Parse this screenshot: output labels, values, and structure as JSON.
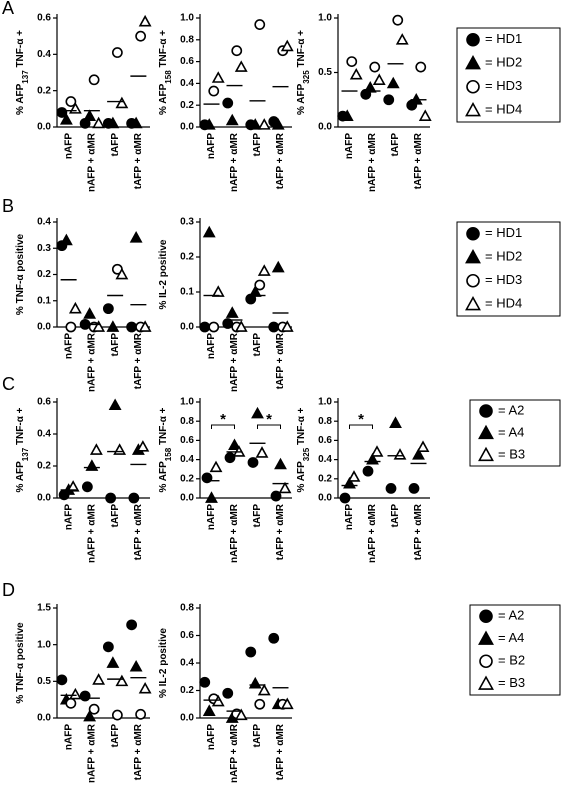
{
  "panel_labels": [
    "A",
    "B",
    "C",
    "D"
  ],
  "chart_data": [
    {
      "type": "dot",
      "ylabel": [
        "% AFP",
        "137",
        " TNF-α +"
      ],
      "categories": [
        "nAFP",
        "nAFP + αMR",
        "tAFP",
        "tAFP + αMR"
      ],
      "ylim": [
        0,
        0.6
      ],
      "yticks": [
        {
          "value": 0,
          "label": "0.0"
        },
        0.2,
        0.4,
        0.6
      ],
      "series": [
        {
          "name": "= HD1",
          "marker": "circle",
          "filled": true,
          "color": "#000000",
          "values": [
            0.08,
            0.02,
            0.02,
            0.02
          ]
        },
        {
          "name": "= HD2",
          "marker": "triangle",
          "filled": true,
          "color": "#000000",
          "values": [
            0.04,
            0.06,
            0.02,
            0.02
          ]
        },
        {
          "name": "= HD3",
          "marker": "circle",
          "filled": false,
          "color": "#000000",
          "values": [
            0.14,
            0.26,
            0.41,
            0.5
          ]
        },
        {
          "name": "= HD4",
          "marker": "triangle",
          "filled": false,
          "color": "#000000",
          "values": [
            0.1,
            0.02,
            0.13,
            0.58
          ]
        }
      ],
      "means": [
        0.09,
        0.09,
        0.14,
        0.28
      ]
    },
    {
      "type": "dot",
      "ylabel": [
        "% AFP",
        "158",
        " TNF-α +"
      ],
      "categories": [
        "nAFP",
        "nAFP + αMR",
        "tAFP",
        "tAFP + αMR"
      ],
      "ylim": [
        0,
        1.0
      ],
      "yticks": [
        {
          "value": 0,
          "label": "0.0"
        },
        0.2,
        0.4,
        0.6,
        0.8,
        {
          "value": 1,
          "label": "1.0"
        }
      ],
      "series": [
        {
          "name": "= HD1",
          "marker": "circle",
          "filled": true,
          "color": "#000000",
          "values": [
            0.02,
            0.22,
            0.02,
            0.05
          ]
        },
        {
          "name": "= HD2",
          "marker": "triangle",
          "filled": true,
          "color": "#000000",
          "values": [
            0.02,
            0.06,
            0.02,
            0.02
          ]
        },
        {
          "name": "= HD3",
          "marker": "circle",
          "filled": false,
          "color": "#000000",
          "values": [
            0.33,
            0.7,
            0.94,
            0.7
          ]
        },
        {
          "name": "= HD4",
          "marker": "triangle",
          "filled": false,
          "color": "#000000",
          "values": [
            0.45,
            0.55,
            0.02,
            0.74
          ]
        }
      ],
      "means": [
        0.21,
        0.38,
        0.24,
        0.37
      ]
    },
    {
      "type": "dot",
      "ylabel": [
        "% AFP",
        "325",
        " TNF-α +"
      ],
      "categories": [
        "nAFP",
        "nAFP + αMR",
        "tAFP",
        "tAFP + αMR"
      ],
      "ylim": [
        0,
        1.0
      ],
      "yticks": [
        {
          "value": 0,
          "label": "0.0"
        },
        0.5,
        {
          "value": 1,
          "label": "1.0"
        }
      ],
      "series": [
        {
          "name": "= HD1",
          "marker": "circle",
          "filled": true,
          "color": "#000000",
          "values": [
            0.1,
            0.3,
            0.25,
            0.2
          ]
        },
        {
          "name": "= HD2",
          "marker": "triangle",
          "filled": true,
          "color": "#000000",
          "values": [
            0.1,
            0.36,
            0.4,
            0.25
          ]
        },
        {
          "name": "= HD3",
          "marker": "circle",
          "filled": false,
          "color": "#000000",
          "values": [
            0.6,
            0.55,
            0.98,
            0.55
          ]
        },
        {
          "name": "= HD4",
          "marker": "triangle",
          "filled": false,
          "color": "#000000",
          "values": [
            0.48,
            0.43,
            0.8,
            0.1
          ]
        }
      ],
      "means": [
        0.33,
        0.33,
        0.58,
        0.25
      ]
    },
    {
      "type": "dot",
      "ylabel": "% TNF-α positive",
      "categories": [
        "nAFP",
        "nAFP + αMR",
        "tAFP",
        "tAFP + αMR"
      ],
      "ylim": [
        0,
        0.4
      ],
      "yticks": [
        {
          "value": 0,
          "label": "0.0"
        },
        0.1,
        0.2,
        0.3,
        0.4
      ],
      "series": [
        {
          "name": "= HD1",
          "marker": "circle",
          "filled": true,
          "color": "#000000",
          "values": [
            0.31,
            0.01,
            0.07,
            0
          ]
        },
        {
          "name": "= HD2",
          "marker": "triangle",
          "filled": true,
          "color": "#000000",
          "values": [
            0.33,
            0.05,
            0,
            0.34
          ]
        },
        {
          "name": "= HD3",
          "marker": "circle",
          "filled": false,
          "color": "#000000",
          "values": [
            0,
            0,
            0.22,
            0
          ]
        },
        {
          "name": "= HD4",
          "marker": "triangle",
          "filled": false,
          "color": "#000000",
          "values": [
            0.07,
            0,
            0.2,
            0
          ]
        }
      ],
      "means": [
        0.18,
        0.01,
        0.12,
        0.085
      ]
    },
    {
      "type": "dot",
      "ylabel": "% IL-2 positive",
      "categories": [
        "nAFP",
        "nAFP + αMR",
        "tAFP",
        "tAFP + αMR"
      ],
      "ylim": [
        0,
        0.3
      ],
      "yticks": [
        {
          "value": 0,
          "label": "0.0"
        },
        0.1,
        0.2,
        0.3
      ],
      "series": [
        {
          "name": "= HD1",
          "marker": "circle",
          "filled": true,
          "color": "#000000",
          "values": [
            0,
            0.01,
            0.08,
            0
          ]
        },
        {
          "name": "= HD2",
          "marker": "triangle",
          "filled": true,
          "color": "#000000",
          "values": [
            0.27,
            0.04,
            0.1,
            0.17
          ]
        },
        {
          "name": "= HD3",
          "marker": "circle",
          "filled": false,
          "color": "#000000",
          "values": [
            0,
            0,
            0.12,
            0
          ]
        },
        {
          "name": "= HD4",
          "marker": "triangle",
          "filled": false,
          "color": "#000000",
          "values": [
            0.1,
            0,
            0.16,
            0
          ]
        }
      ],
      "means": [
        0.09,
        0.02,
        0.09,
        0.04
      ]
    },
    {
      "type": "dot",
      "ylabel": [
        "% AFP",
        "137",
        " TNF-α +"
      ],
      "categories": [
        "nAFP",
        "nAFP + αMR",
        "tAFP",
        "tAFP + αMR"
      ],
      "ylim": [
        0,
        0.6
      ],
      "yticks": [
        {
          "value": 0,
          "label": "0.0"
        },
        0.2,
        0.4,
        0.6
      ],
      "series": [
        {
          "name": "= A2",
          "marker": "circle",
          "filled": true,
          "color": "#000000",
          "values": [
            0.02,
            0.07,
            0,
            0
          ]
        },
        {
          "name": "= A4",
          "marker": "triangle",
          "filled": true,
          "color": "#000000",
          "values": [
            0.05,
            0.2,
            0.58,
            0.3
          ]
        },
        {
          "name": "= B3",
          "marker": "triangle",
          "filled": false,
          "color": "#000000",
          "values": [
            0.07,
            0.3,
            0.3,
            0.32
          ]
        }
      ],
      "means": [
        0.05,
        0.19,
        0.29,
        0.21
      ]
    },
    {
      "type": "dot",
      "ylabel": [
        "% AFP",
        "158",
        " TNF-α +"
      ],
      "categories": [
        "nAFP",
        "nAFP + αMR",
        "tAFP",
        "tAFP + αMR"
      ],
      "ylim": [
        0,
        1.0
      ],
      "yticks": [
        {
          "value": 0,
          "label": "0.0"
        },
        0.2,
        0.4,
        0.6,
        0.8,
        {
          "value": 1,
          "label": "1.0"
        }
      ],
      "series": [
        {
          "name": "= A2",
          "marker": "circle",
          "filled": true,
          "color": "#000000",
          "values": [
            0.21,
            0.42,
            0.37,
            0.02
          ]
        },
        {
          "name": "= A4",
          "marker": "triangle",
          "filled": true,
          "color": "#000000",
          "values": [
            0,
            0.55,
            0.88,
            0.35
          ]
        },
        {
          "name": "= B3",
          "marker": "triangle",
          "filled": false,
          "color": "#000000",
          "values": [
            0.32,
            0.48,
            0.47,
            0.1
          ]
        }
      ],
      "means": [
        0.18,
        0.48,
        0.57,
        0.15
      ],
      "annotations": [
        {
          "text": "*",
          "from": 0,
          "to": 1,
          "y": 0.76
        },
        {
          "text": "*",
          "from": 2,
          "to": 3,
          "y": 0.76
        }
      ]
    },
    {
      "type": "dot",
      "ylabel": [
        "% AFP",
        "325",
        " TNF-α +"
      ],
      "categories": [
        "nAFP",
        "nAFP + αMR",
        "tAFP",
        "tAFP + αMR"
      ],
      "ylim": [
        0,
        1.0
      ],
      "yticks": [
        {
          "value": 0,
          "label": "0.0"
        },
        0.2,
        0.4,
        0.6,
        0.8,
        {
          "value": 1,
          "label": "1.0"
        }
      ],
      "series": [
        {
          "name": "= A2",
          "marker": "circle",
          "filled": true,
          "color": "#000000",
          "values": [
            0,
            0.28,
            0.1,
            0.1
          ]
        },
        {
          "name": "= A4",
          "marker": "triangle",
          "filled": true,
          "color": "#000000",
          "values": [
            0.15,
            0.4,
            0.78,
            0.45
          ]
        },
        {
          "name": "= B3",
          "marker": "triangle",
          "filled": false,
          "color": "#000000",
          "values": [
            0.22,
            0.48,
            0.45,
            0.53
          ]
        }
      ],
      "means": [
        0.13,
        0.38,
        0.44,
        0.36
      ],
      "annotations": [
        {
          "text": "*",
          "from": 0,
          "to": 1,
          "y": 0.76
        }
      ]
    },
    {
      "type": "dot",
      "ylabel": "% TNF-α positive",
      "categories": [
        "nAFP",
        "nAFP + αMR",
        "tAFP",
        "tAFP + αMR"
      ],
      "ylim": [
        0,
        1.5
      ],
      "yticks": [
        {
          "value": 0,
          "label": "0.0"
        },
        0.5,
        {
          "value": 1,
          "label": "1.0"
        },
        1.5
      ],
      "series": [
        {
          "name": "= A2",
          "marker": "circle",
          "filled": true,
          "color": "#000000",
          "values": [
            0.52,
            0.3,
            0.97,
            1.27
          ]
        },
        {
          "name": "= A4",
          "marker": "triangle",
          "filled": true,
          "color": "#000000",
          "values": [
            0.25,
            0.02,
            0.75,
            0.7
          ]
        },
        {
          "name": "= B2",
          "marker": "circle",
          "filled": false,
          "color": "#000000",
          "values": [
            0.2,
            0.12,
            0.04,
            0.05
          ]
        },
        {
          "name": "= B3",
          "marker": "triangle",
          "filled": false,
          "color": "#000000",
          "values": [
            0.32,
            0.52,
            0.5,
            0.4
          ]
        }
      ],
      "means": [
        0.31,
        0.27,
        0.53,
        0.55
      ]
    },
    {
      "type": "dot",
      "ylabel": "% IL-2 positive",
      "categories": [
        "nAFP",
        "nAFP + αMR",
        "tAFP",
        "tAFP + αMR"
      ],
      "ylim": [
        0,
        0.8
      ],
      "yticks": [
        {
          "value": 0,
          "label": "0.0"
        },
        0.2,
        0.4,
        0.6,
        0.8
      ],
      "series": [
        {
          "name": "= A2",
          "marker": "circle",
          "filled": true,
          "color": "#000000",
          "values": [
            0.26,
            0.18,
            0.48,
            0.58
          ]
        },
        {
          "name": "= A4",
          "marker": "triangle",
          "filled": true,
          "color": "#000000",
          "values": [
            0.05,
            0,
            0.25,
            0.1
          ]
        },
        {
          "name": "= B2",
          "marker": "circle",
          "filled": false,
          "color": "#000000",
          "values": [
            0.14,
            0.03,
            0.1,
            0.1
          ]
        },
        {
          "name": "= B3",
          "marker": "triangle",
          "filled": false,
          "color": "#000000",
          "values": [
            0.12,
            0.02,
            0.2,
            0.1
          ]
        }
      ],
      "means": [
        0.13,
        0.05,
        0.24,
        0.22
      ]
    }
  ]
}
